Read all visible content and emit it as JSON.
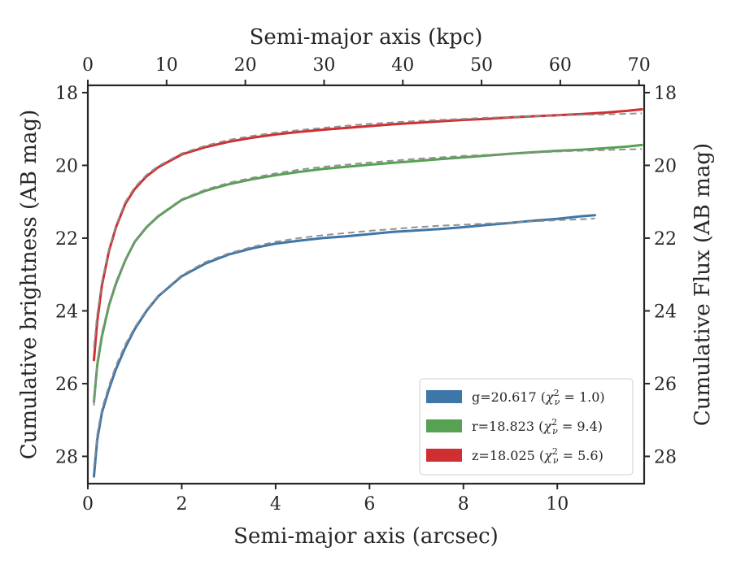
{
  "chart_data": {
    "type": "line",
    "xlabel": "Semi-major axis (arcsec)",
    "ylabel": "Cumulative brightness (AB mag)",
    "x2label": "Semi-major axis (kpc)",
    "y2label": "Cumulative Flux (AB mag)",
    "xlim": [
      0,
      11.85
    ],
    "ylim": [
      28.75,
      17.8
    ],
    "x2lim": [
      0,
      70.65
    ],
    "y_inverted": true,
    "x_ticks": [
      0,
      2,
      4,
      6,
      8,
      10
    ],
    "x2_ticks": [
      0,
      10,
      20,
      30,
      40,
      50,
      60,
      70
    ],
    "y_ticks": [
      18,
      20,
      22,
      24,
      26,
      28
    ],
    "grid": false,
    "legend_position": "lower-right",
    "series": [
      {
        "name": "g=20.617",
        "chi_label": "χ",
        "chi_sup": "2",
        "chi_sub": "ν",
        "chi_val": " = 1.0)",
        "color": "#3f76a8",
        "x": [
          0.13,
          0.2,
          0.3,
          0.45,
          0.6,
          0.8,
          1.0,
          1.25,
          1.5,
          2.0,
          2.5,
          3.0,
          3.5,
          4.0,
          4.5,
          5.0,
          5.5,
          6.0,
          6.5,
          7.0,
          7.5,
          8.0,
          8.5,
          9.0,
          9.5,
          10.0,
          10.5,
          10.8
        ],
        "y": [
          28.55,
          27.55,
          26.8,
          26.15,
          25.6,
          25.0,
          24.5,
          24.0,
          23.6,
          23.05,
          22.7,
          22.45,
          22.28,
          22.15,
          22.07,
          22.0,
          21.95,
          21.89,
          21.83,
          21.79,
          21.75,
          21.7,
          21.64,
          21.58,
          21.52,
          21.47,
          21.4,
          21.37
        ]
      },
      {
        "name": "r=18.823",
        "chi_label": "χ",
        "chi_sup": "2",
        "chi_sub": "ν",
        "chi_val": " = 9.4)",
        "color": "#56a152",
        "x": [
          0.13,
          0.2,
          0.3,
          0.45,
          0.6,
          0.8,
          1.0,
          1.25,
          1.5,
          2.0,
          2.5,
          3.0,
          3.5,
          4.0,
          4.5,
          5.0,
          5.5,
          6.0,
          6.5,
          7.0,
          7.5,
          8.0,
          8.5,
          9.0,
          9.5,
          10.0,
          10.5,
          11.0,
          11.5,
          11.8
        ],
        "y": [
          26.5,
          25.5,
          24.7,
          23.85,
          23.25,
          22.6,
          22.1,
          21.7,
          21.4,
          20.95,
          20.7,
          20.52,
          20.38,
          20.27,
          20.18,
          20.1,
          20.04,
          19.98,
          19.93,
          19.88,
          19.83,
          19.78,
          19.73,
          19.68,
          19.64,
          19.6,
          19.57,
          19.53,
          19.48,
          19.44
        ]
      },
      {
        "name": "z=18.025",
        "chi_label": "χ",
        "chi_sup": "2",
        "chi_sub": "ν",
        "chi_val": " = 5.6)",
        "color": "#cf2f31",
        "x": [
          0.13,
          0.2,
          0.3,
          0.45,
          0.6,
          0.8,
          1.0,
          1.25,
          1.5,
          2.0,
          2.5,
          3.0,
          3.5,
          4.0,
          4.5,
          5.0,
          5.5,
          6.0,
          6.5,
          7.0,
          7.5,
          8.0,
          8.5,
          9.0,
          9.5,
          10.0,
          10.5,
          11.0,
          11.5,
          11.8
        ],
        "y": [
          25.35,
          24.3,
          23.3,
          22.35,
          21.7,
          21.05,
          20.65,
          20.3,
          20.05,
          19.7,
          19.5,
          19.35,
          19.24,
          19.15,
          19.08,
          19.02,
          18.97,
          18.92,
          18.87,
          18.83,
          18.79,
          18.75,
          18.72,
          18.68,
          18.65,
          18.62,
          18.59,
          18.55,
          18.5,
          18.46
        ]
      }
    ],
    "model_fits": [
      {
        "color": "#8c8c8c",
        "x": [
          0.13,
          0.2,
          0.3,
          0.45,
          0.6,
          0.8,
          1.0,
          1.25,
          1.5,
          2.0,
          2.5,
          3.0,
          3.5,
          4.0,
          4.5,
          5.0,
          5.5,
          6.0,
          6.5,
          7.0,
          7.5,
          8.0,
          8.5,
          9.0,
          9.5,
          10.0,
          10.5,
          10.8
        ],
        "y": [
          28.3,
          27.4,
          26.7,
          26.05,
          25.5,
          24.92,
          24.45,
          23.97,
          23.58,
          23.02,
          22.66,
          22.42,
          22.24,
          22.1,
          22.0,
          21.92,
          21.86,
          21.8,
          21.75,
          21.7,
          21.66,
          21.63,
          21.6,
          21.57,
          21.54,
          21.51,
          21.48,
          21.46
        ]
      },
      {
        "color": "#8c8c8c",
        "x": [
          0.13,
          0.2,
          0.3,
          0.45,
          0.6,
          0.8,
          1.0,
          1.25,
          1.5,
          2.0,
          2.5,
          3.0,
          3.5,
          4.0,
          4.5,
          5.0,
          5.5,
          6.0,
          6.5,
          7.0,
          7.5,
          8.0,
          8.5,
          9.0,
          9.5,
          10.0,
          10.5,
          11.0,
          11.5,
          11.8
        ],
        "y": [
          26.6,
          25.4,
          24.6,
          23.8,
          23.2,
          22.58,
          22.08,
          21.68,
          21.38,
          20.93,
          20.67,
          20.48,
          20.34,
          20.22,
          20.12,
          20.04,
          19.98,
          19.92,
          19.87,
          19.82,
          19.78,
          19.74,
          19.71,
          19.68,
          19.65,
          19.62,
          19.6,
          19.58,
          19.56,
          19.55
        ]
      },
      {
        "color": "#8c8c8c",
        "x": [
          0.13,
          0.2,
          0.3,
          0.45,
          0.6,
          0.8,
          1.0,
          1.25,
          1.5,
          2.0,
          2.5,
          3.0,
          3.5,
          4.0,
          4.5,
          5.0,
          5.5,
          6.0,
          6.5,
          7.0,
          7.5,
          8.0,
          8.5,
          9.0,
          9.5,
          10.0,
          10.5,
          11.0,
          11.5,
          11.8
        ],
        "y": [
          25.0,
          24.1,
          23.2,
          22.3,
          21.65,
          21.0,
          20.6,
          20.26,
          20.02,
          19.67,
          19.46,
          19.3,
          19.19,
          19.1,
          19.03,
          18.97,
          18.91,
          18.86,
          18.82,
          18.78,
          18.75,
          18.72,
          18.69,
          18.67,
          18.65,
          18.63,
          18.61,
          18.6,
          18.58,
          18.57
        ]
      }
    ]
  }
}
